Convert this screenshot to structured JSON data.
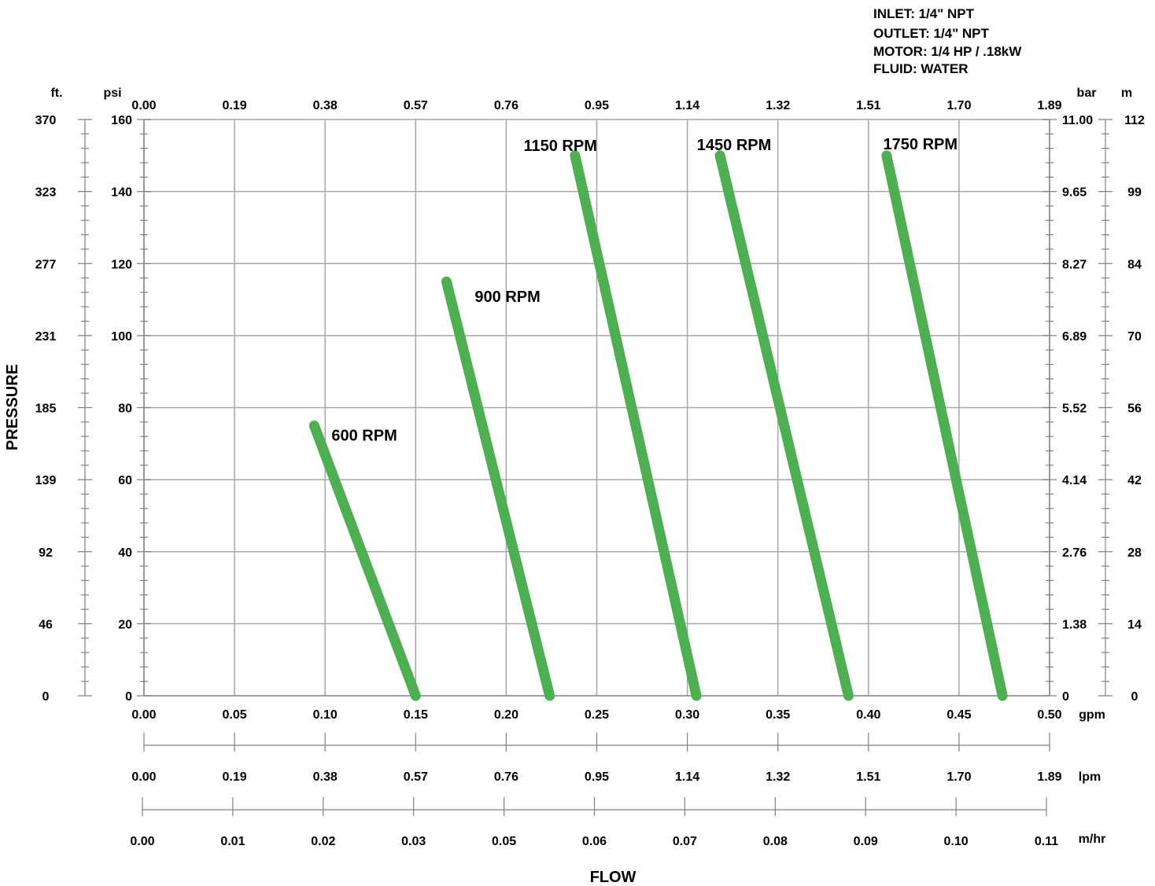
{
  "specs": {
    "inlet": "INLET: 1/4\" NPT",
    "outlet": "OUTLET: 1/4\" NPT",
    "motor": "MOTOR: 1/4 HP /  .18kW",
    "fluid": "FLUID: WATER"
  },
  "colors": {
    "curve": "#4caf50",
    "grid": "#a6a6a6",
    "axis": "#808080"
  },
  "chart_data": {
    "type": "line",
    "xlabel": "FLOW",
    "ylabel": "PRESSURE",
    "xlim": [
      0,
      0.5
    ],
    "ylim": [
      0,
      160
    ],
    "grid": true,
    "axes": {
      "gpm": {
        "unit": "gpm",
        "ticks": [
          "0.00",
          "0.05",
          "0.10",
          "0.15",
          "0.20",
          "0.25",
          "0.30",
          "0.35",
          "0.40",
          "0.45",
          "0.50"
        ]
      },
      "lpm_top": {
        "ticks": [
          "0.00",
          "0.19",
          "0.38",
          "0.57",
          "0.76",
          "0.95",
          "1.14",
          "1.32",
          "1.51",
          "1.70",
          "1.89"
        ]
      },
      "lpm": {
        "unit": "lpm",
        "ticks": [
          "0.00",
          "0.19",
          "0.38",
          "0.57",
          "0.76",
          "0.95",
          "1.14",
          "1.32",
          "1.51",
          "1.70",
          "1.89"
        ]
      },
      "m3hr": {
        "unit": "m/hr",
        "ticks": [
          "0.00",
          "0.01",
          "0.02",
          "0.03",
          "0.05",
          "0.06",
          "0.07",
          "0.08",
          "0.09",
          "0.10",
          "0.11"
        ]
      },
      "psi": {
        "unit": "psi",
        "ticks": [
          "0",
          "20",
          "40",
          "60",
          "80",
          "100",
          "120",
          "140",
          "160"
        ]
      },
      "ft": {
        "unit": "ft.",
        "ticks": [
          "0",
          "46",
          "92",
          "139",
          "185",
          "231",
          "277",
          "323",
          "370"
        ]
      },
      "bar": {
        "unit": "bar",
        "ticks": [
          "0",
          "1.38",
          "2.76",
          "4.14",
          "5.52",
          "6.89",
          "8.27",
          "9.65",
          "11.00"
        ]
      },
      "m": {
        "unit": "m",
        "ticks": [
          "0",
          "14",
          "28",
          "42",
          "56",
          "70",
          "84",
          "99",
          "112"
        ]
      }
    },
    "series": [
      {
        "name": "600 RPM",
        "x": [
          0.094,
          0.15
        ],
        "y": [
          75,
          0
        ]
      },
      {
        "name": "900 RPM",
        "x": [
          0.167,
          0.224
        ],
        "y": [
          115,
          0
        ]
      },
      {
        "name": "1150 RPM",
        "x": [
          0.238,
          0.305
        ],
        "y": [
          150,
          0
        ]
      },
      {
        "name": "1450 RPM",
        "x": [
          0.318,
          0.389
        ],
        "y": [
          150,
          0
        ]
      },
      {
        "name": "1750 RPM",
        "x": [
          0.41,
          0.474
        ],
        "y": [
          150,
          0
        ]
      }
    ]
  }
}
